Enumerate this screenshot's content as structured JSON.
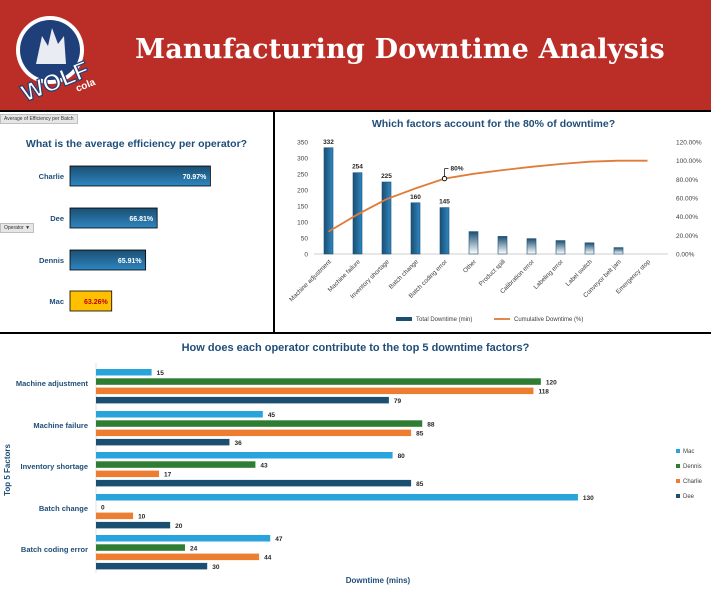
{
  "header": {
    "title": "Manufacturing Downtime Analysis",
    "logo_text": "WOLF",
    "logo_subtext": "cola"
  },
  "colors": {
    "header_bg": "#bb2d27",
    "title_blue": "#1f4e79",
    "bar_dark": "#1b4f72",
    "bar_highlight": "#ffc000",
    "cumulative_line": "#e07b39",
    "mac": "#29a3dc",
    "dennis": "#2e7d32",
    "charlie": "#ed7d31",
    "dee": "#1b4f72"
  },
  "efficiency_panel": {
    "title": "What is the average efficiency per operator?",
    "field_button": "Average of Efficiency per Batch",
    "filter_button": "Operator"
  },
  "pareto_panel": {
    "title": "Which factors account for the 80% of downtime?",
    "marker_label": "80%",
    "legend": [
      "Total Downtime (min)",
      "Cumulative Downtime (%)"
    ]
  },
  "contribution_panel": {
    "title": "How does each operator contribute to the top 5 downtime factors?",
    "ylabel": "Top 5 Factors",
    "xlabel": "Downtime (mins)"
  },
  "chart_data": [
    {
      "type": "bar",
      "orientation": "horizontal",
      "title": "What is the average efficiency per operator?",
      "categories": [
        "Charlie",
        "Dee",
        "Dennis",
        "Mac"
      ],
      "values": [
        70.97,
        66.81,
        65.91,
        63.26
      ],
      "value_labels": [
        "70.97%",
        "66.81%",
        "65.91%",
        "63.26%"
      ],
      "highlight": "Mac",
      "xlim": [
        60,
        75
      ]
    },
    {
      "type": "bar",
      "title": "Which factors account for the 80% of downtime?",
      "categories": [
        "Machine adjustment",
        "Machine failure",
        "Inventory shortage",
        "Batch change",
        "Batch coding error",
        "Other",
        "Product spill",
        "Calibration error",
        "Labeling error",
        "Label switch",
        "Conveyor belt jam",
        "Emergency stop"
      ],
      "series": [
        {
          "name": "Total Downtime (min)",
          "values": [
            332,
            254,
            225,
            160,
            145,
            70,
            55,
            48,
            42,
            35,
            20,
            0
          ]
        },
        {
          "name": "Cumulative Downtime (%)",
          "values": [
            24.0,
            42.4,
            58.7,
            70.3,
            80.8,
            85.9,
            89.9,
            93.4,
            96.4,
            98.9,
            100.0,
            100.0
          ]
        }
      ],
      "data_labels": [
        "332",
        "254",
        "225",
        "160",
        "145"
      ],
      "ylim": [
        0,
        350
      ],
      "yticks": [
        "0",
        "50",
        "100",
        "150",
        "200",
        "250",
        "300",
        "350"
      ],
      "y2lim": [
        0,
        120
      ],
      "y2ticks": [
        "0.00%",
        "20.00%",
        "40.00%",
        "60.00%",
        "80.00%",
        "100.00%",
        "120.00%"
      ],
      "legend_position": "bottom"
    },
    {
      "type": "bar",
      "orientation": "horizontal",
      "title": "How does each operator contribute to the top 5 downtime factors?",
      "categories": [
        "Machine adjustment",
        "Machine failure",
        "Inventory shortage",
        "Batch change",
        "Batch coding error"
      ],
      "series": [
        {
          "name": "Mac",
          "values": [
            15,
            45,
            80,
            130,
            47
          ]
        },
        {
          "name": "Dennis",
          "values": [
            120,
            88,
            43,
            0,
            24
          ]
        },
        {
          "name": "Charlie",
          "values": [
            118,
            85,
            17,
            10,
            44
          ]
        },
        {
          "name": "Dee",
          "values": [
            79,
            36,
            85,
            20,
            30
          ]
        }
      ],
      "series_labels": [
        [
          "15",
          "45",
          "80",
          "130",
          "47"
        ],
        [
          "120",
          "88",
          "43",
          "0",
          "24"
        ],
        [
          "118",
          "85",
          "17",
          "10",
          "44"
        ],
        [
          "79",
          "36",
          "85",
          "20",
          "30"
        ]
      ],
      "xlim": [
        0,
        140
      ],
      "xlabel": "Downtime (mins)",
      "ylabel": "Top 5 Factors",
      "legend_position": "right"
    }
  ]
}
